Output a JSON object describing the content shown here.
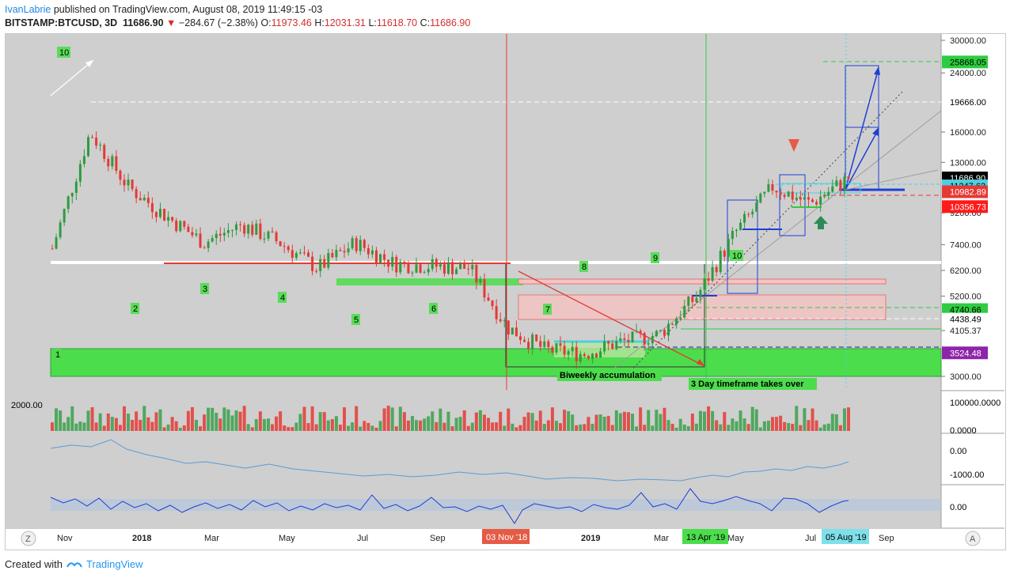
{
  "header": {
    "author": "IvanLabrie",
    "published_text": " published on TradingView.com, August 08, 2019 11:49:15 -03",
    "symbol": "BITSTAMP:BTCUSD, 3D",
    "last": "11686.90",
    "change": "−284.67 (−2.38%)",
    "o_label": "O:",
    "open": "11973.46",
    "h_label": "H:",
    "high": "12031.31",
    "l_label": "L:",
    "low": "11618.70",
    "c_label": "C:",
    "close": "11686.90"
  },
  "footer": {
    "created_with": "Created with",
    "brand": "TradingView"
  },
  "colors": {
    "up": "#2e9b3f",
    "down": "#e53935",
    "pane_bg": "#cfcfcf",
    "accent": "#1e88e5"
  },
  "chart_data": {
    "type": "candlestick",
    "scale": "log",
    "y_ticks": [
      "30000.00",
      "24000.00",
      "16000.00",
      "13000.00",
      "9200.00",
      "7400.00",
      "6200.00",
      "5200.00",
      "4105.37",
      "3000.00"
    ],
    "x_ticks": [
      "Nov",
      "2018",
      "Mar",
      "May",
      "Jul",
      "Sep",
      "2019",
      "Mar",
      "May",
      "Jul",
      "Sep"
    ],
    "x_markers": [
      "03 Nov '18",
      "13 Apr '19",
      "05 Aug '19"
    ],
    "price_labels": [
      {
        "text": "25868.05",
        "bg": "#2ecc40",
        "fg": "#000"
      },
      {
        "text": "19666.00",
        "bg": "#ffffff",
        "fg": "#000"
      },
      {
        "text": "11686.90",
        "bg": "#000000",
        "fg": "#fff"
      },
      {
        "text": "11247.62",
        "bg": "#4dd0e1",
        "fg": "#000"
      },
      {
        "text": "10982.89",
        "bg": "#e53935",
        "fg": "#fff"
      },
      {
        "text": "10356.73",
        "bg": "#ff1a1a",
        "fg": "#fff"
      },
      {
        "text": "4740.66",
        "bg": "#2ecc40",
        "fg": "#000"
      },
      {
        "text": "4438.49",
        "bg": "#ffffff",
        "fg": "#000"
      },
      {
        "text": "3524.48",
        "bg": "#8e24aa",
        "fg": "#fff"
      }
    ],
    "annotations": [
      "Biweekly accumulation",
      "3 Day timeframe takes over"
    ],
    "wave_counts": [
      "1",
      "2",
      "3",
      "4",
      "5",
      "6",
      "7",
      "8",
      "9",
      "10",
      "10"
    ],
    "volume_ticks": [
      "2000.00",
      "100000.0000",
      "0.0000"
    ],
    "osc1_ticks": [
      "0.00",
      "-1000.00"
    ],
    "osc2_ticks": [
      "0.00"
    ],
    "close_path": [
      [
        "2017-11",
        7200
      ],
      [
        "2017-12",
        16000
      ],
      [
        "2018-01",
        11000
      ],
      [
        "2018-02",
        9000
      ],
      [
        "2018-03",
        7500
      ],
      [
        "2018-04",
        8500
      ],
      [
        "2018-05",
        7500
      ],
      [
        "2018-06",
        6300
      ],
      [
        "2018-07",
        7500
      ],
      [
        "2018-08",
        6500
      ],
      [
        "2018-09",
        6400
      ],
      [
        "2018-10",
        6300
      ],
      [
        "2018-11",
        4200
      ],
      [
        "2018-12",
        3600
      ],
      [
        "2019-01",
        3500
      ],
      [
        "2019-02",
        3800
      ],
      [
        "2019-03",
        4000
      ],
      [
        "2019-04",
        5200
      ],
      [
        "2019-05",
        8000
      ],
      [
        "2019-06",
        11000
      ],
      [
        "2019-07",
        9800
      ],
      [
        "2019-08",
        11686.9
      ]
    ]
  },
  "axis_buttons": {
    "left": "Z",
    "right": "A"
  }
}
